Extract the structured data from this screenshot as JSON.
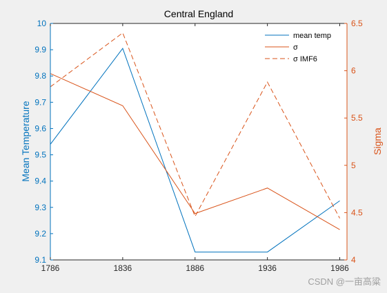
{
  "chart_data": {
    "type": "line",
    "title": "Central England",
    "x": [
      1786,
      1836,
      1886,
      1936,
      1986
    ],
    "xticks": [
      "1786",
      "1836",
      "1886",
      "1936",
      "1986"
    ],
    "xlim": [
      1786,
      1991
    ],
    "ylabel_left": "Mean Temperature",
    "ylabel_right": "Sigma",
    "ylim_left": [
      9.1,
      10
    ],
    "ylim_right": [
      4,
      6.5
    ],
    "yticks_left": [
      "9.1",
      "9.2",
      "9.3",
      "9.4",
      "9.5",
      "9.6",
      "9.7",
      "9.8",
      "9.9",
      "10"
    ],
    "yticks_right": [
      "4",
      "4.5",
      "5",
      "5.5",
      "6",
      "6.5"
    ],
    "series": [
      {
        "name": "mean temp",
        "axis": "left",
        "style": "solid",
        "color": "#0072bd",
        "values": [
          9.54,
          9.905,
          9.13,
          9.13,
          9.325
        ]
      },
      {
        "name": "σ",
        "axis": "right",
        "style": "solid",
        "color": "#d95319",
        "values": [
          5.97,
          5.63,
          4.49,
          4.76,
          4.32
        ]
      },
      {
        "name": "σ IMF6",
        "axis": "right",
        "style": "dashed",
        "color": "#d95319",
        "values": [
          5.83,
          6.4,
          4.46,
          5.88,
          4.44
        ]
      }
    ],
    "legend_position": "top-right",
    "grid": false
  },
  "watermark": "CSDN @一亩高粱",
  "colors": {
    "left_axis": "#0072bd",
    "right_axis": "#d95319",
    "background": "#f0f0f0",
    "plot": "#ffffff"
  }
}
